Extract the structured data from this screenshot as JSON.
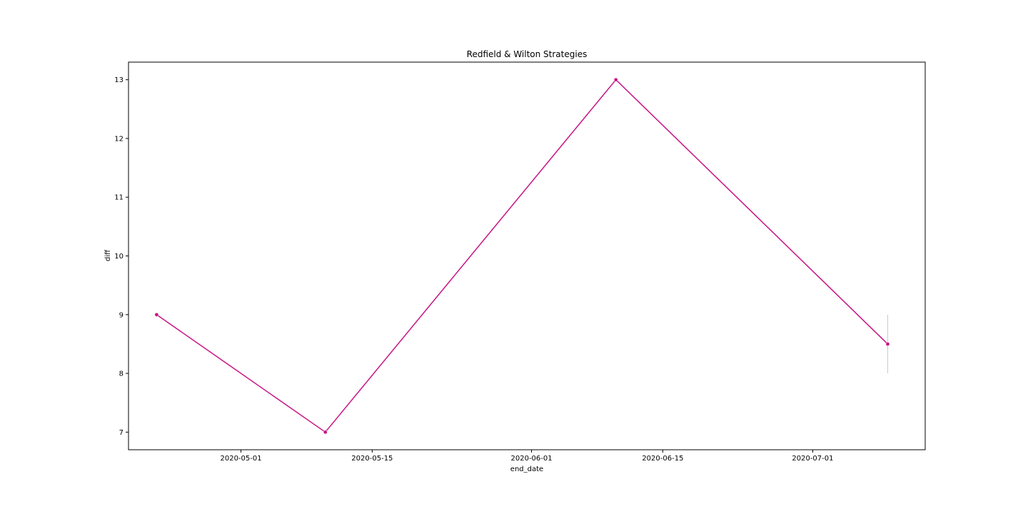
{
  "chart_data": {
    "type": "line",
    "title": "Redfield & Wilton Strategies",
    "xlabel": "end_date",
    "ylabel": "diff",
    "x_ticks": [
      "2020-05-01",
      "2020-05-15",
      "2020-06-01",
      "2020-06-15",
      "2020-07-01"
    ],
    "y_ticks": [
      7,
      8,
      9,
      10,
      11,
      12,
      13
    ],
    "xlim": [
      "2020-04-19",
      "2020-07-13"
    ],
    "ylim": [
      6.7,
      13.3
    ],
    "grid": false,
    "series": [
      {
        "x": [
          "2020-04-22",
          "2020-05-10",
          "2020-06-10",
          "2020-07-09"
        ],
        "values": [
          9,
          7,
          13,
          8.5
        ],
        "error_low": [
          9,
          7,
          13,
          8
        ],
        "error_high": [
          9,
          7,
          13,
          9
        ]
      }
    ],
    "colors": {
      "line": "#c71585",
      "error_band": "#c9c9c9",
      "axes": "#000000"
    }
  }
}
